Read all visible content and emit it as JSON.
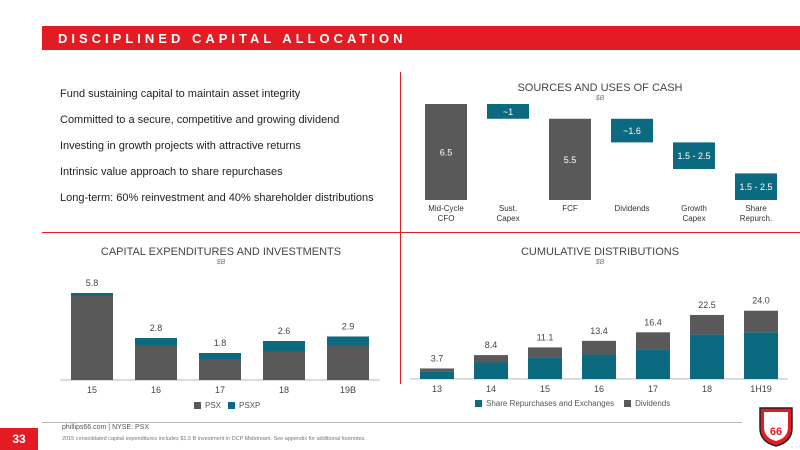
{
  "slide": {
    "title": "DISCIPLINED CAPITAL ALLOCATION",
    "page_number": "33",
    "footer": "phillips66.com  |  NYSE: PSX",
    "footnote": "2015 consolidated capital expenditures includes $1.5 B investment in DCP Midstream. See appendix for additional footnotes.",
    "logo_text": "PHILLIPS 66",
    "colors": {
      "red": "#e31b23",
      "teal": "#0b6a80",
      "gray": "#595959",
      "dark_gray": "#404040"
    }
  },
  "bullets": [
    "Fund sustaining capital to maintain asset integrity",
    "Committed to a secure, competitive and growing dividend",
    "Investing in growth projects with attractive returns",
    "Intrinsic value approach to share repurchases",
    "Long-term: 60% reinvestment and 40% shareholder distributions"
  ],
  "chart_data": [
    {
      "id": "sources_uses",
      "type": "bar",
      "subtype": "waterfall",
      "title": "SOURCES AND USES OF CASH",
      "subtitle": "$B",
      "categories": [
        "Mid-Cycle\nCFO",
        "Sust.\nCapex",
        "FCF",
        "Dividends",
        "Growth\nCapex",
        "Share\nRepurch."
      ],
      "bars": [
        {
          "label": "6.5",
          "bottom": 0,
          "top": 6.5,
          "color": "#595959"
        },
        {
          "label": "~1",
          "bottom": 5.5,
          "top": 6.5,
          "color": "#0b6a80"
        },
        {
          "label": "5.5",
          "bottom": 0,
          "top": 5.5,
          "color": "#595959"
        },
        {
          "label": "~1.6",
          "bottom": 3.9,
          "top": 5.5,
          "color": "#0b6a80"
        },
        {
          "label": "1.5 - 2.5",
          "bottom": 2.1,
          "top": 3.9,
          "color": "#0b6a80"
        },
        {
          "label": "1.5 - 2.5",
          "bottom": 0,
          "top": 1.8,
          "color": "#0b6a80"
        }
      ],
      "ylim": [
        0,
        6.5
      ]
    },
    {
      "id": "capex",
      "type": "bar",
      "subtype": "stacked",
      "title": "CAPITAL EXPENDITURES AND INVESTMENTS",
      "subtitle": "$B",
      "categories": [
        "15",
        "16",
        "17",
        "18",
        "19B"
      ],
      "series": [
        {
          "name": "PSX",
          "color": "#595959",
          "values": [
            5.6,
            2.3,
            1.4,
            1.9,
            2.3
          ]
        },
        {
          "name": "PSXP",
          "color": "#0b6a80",
          "values": [
            0.2,
            0.5,
            0.4,
            0.7,
            0.6
          ]
        }
      ],
      "totals": [
        "5.8",
        "2.8",
        "1.8",
        "2.6",
        "2.9"
      ],
      "ylim": [
        0,
        6
      ]
    },
    {
      "id": "cumulative",
      "type": "bar",
      "subtype": "stacked",
      "title": "CUMULATIVE DISTRIBUTIONS",
      "subtitle": "$B",
      "categories": [
        "13",
        "14",
        "15",
        "16",
        "17",
        "18",
        "1H19"
      ],
      "series": [
        {
          "name": "Share Repurchases and Exchanges",
          "color": "#0b6a80",
          "values": [
            2.6,
            5.8,
            7.4,
            8.6,
            10.4,
            15.6,
            16.4
          ]
        },
        {
          "name": "Dividends",
          "color": "#595959",
          "values": [
            1.1,
            2.6,
            3.7,
            4.8,
            6.0,
            6.9,
            7.6
          ]
        }
      ],
      "totals": [
        "3.7",
        "8.4",
        "11.1",
        "13.4",
        "16.4",
        "22.5",
        "24.0"
      ],
      "ylim": [
        0,
        26
      ]
    }
  ]
}
